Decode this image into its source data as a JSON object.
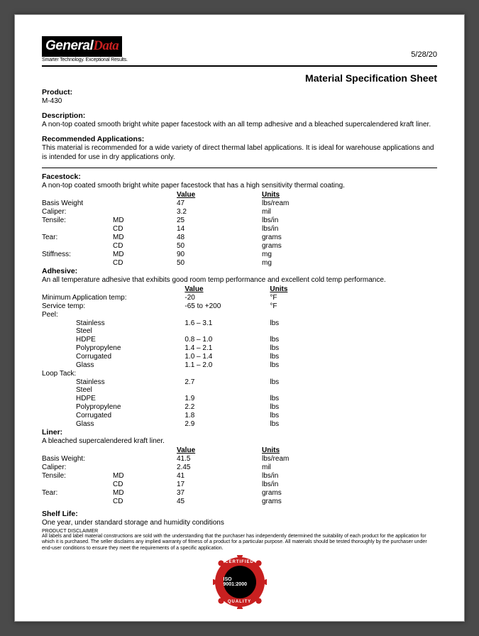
{
  "logo": {
    "part1": "General",
    "part2": "Data"
  },
  "tagline": "Smarter Technology. Exceptional Results.",
  "date": "5/28/20",
  "title": "Material Specification Sheet",
  "product": {
    "label": "Product:",
    "value": "M-430"
  },
  "description": {
    "label": "Description:",
    "value": "A non-top coated smooth bright white paper facestock with an all temp adhesive and a bleached supercalendered kraft liner."
  },
  "applications": {
    "label": "Recommended Applications:",
    "value": "This material is recommended for a wide variety of direct thermal label applications. It is ideal for warehouse applications and is intended for use in dry applications only."
  },
  "headers": {
    "value": "Value",
    "units": "Units"
  },
  "facestock": {
    "label": "Facestock:",
    "desc": "A non-top coated smooth bright white paper facestock that has a high sensitivity thermal coating.",
    "rows": [
      {
        "c1": "Basis Weight",
        "c2": "",
        "c3": "47",
        "c4": "lbs/ream"
      },
      {
        "c1": "Caliper:",
        "c2": "",
        "c3": "3.2",
        "c4": "mil"
      },
      {
        "c1": "Tensile:",
        "c2": "MD",
        "c3": "25",
        "c4": "lbs/in"
      },
      {
        "c1": "",
        "c2": "CD",
        "c3": "14",
        "c4": "lbs/in"
      },
      {
        "c1": "Tear:",
        "c2": "MD",
        "c3": "48",
        "c4": "grams"
      },
      {
        "c1": "",
        "c2": "CD",
        "c3": "50",
        "c4": "grams"
      },
      {
        "c1": "Stiffness:",
        "c2": "MD",
        "c3": "90",
        "c4": "mg"
      },
      {
        "c1": "",
        "c2": "CD",
        "c3": "50",
        "c4": "mg"
      }
    ]
  },
  "adhesive": {
    "label": "Adhesive:",
    "desc": "An all temperature adhesive that exhibits good room temp performance and excellent cold temp performance.",
    "rows": [
      {
        "c1": "Minimum Application temp:",
        "c2": "",
        "c3": "-20",
        "c4": "°F",
        "wide": true
      },
      {
        "c1": "Service temp:",
        "c2": "",
        "c3": "-65 to +200",
        "c4": "°F",
        "wide": true
      },
      {
        "c1": "Peel:",
        "c2": "",
        "c3": "",
        "c4": ""
      },
      {
        "c1": "Stainless Steel",
        "c2": "",
        "c3": "1.6 – 3.1",
        "c4": "lbs",
        "indent": true
      },
      {
        "c1": "HDPE",
        "c2": "",
        "c3": "0.8 – 1.0",
        "c4": "lbs",
        "indent": true
      },
      {
        "c1": "Polypropylene",
        "c2": "",
        "c3": "1.4 – 2.1",
        "c4": "lbs",
        "indent": true
      },
      {
        "c1": "Corrugated",
        "c2": "",
        "c3": "1.0 – 1.4",
        "c4": "lbs",
        "indent": true
      },
      {
        "c1": "Glass",
        "c2": "",
        "c3": "1.1 – 2.0",
        "c4": "lbs",
        "indent": true
      },
      {
        "c1": "Loop Tack:",
        "c2": "",
        "c3": "",
        "c4": ""
      },
      {
        "c1": "Stainless Steel",
        "c2": "",
        "c3": "2.7",
        "c4": "lbs",
        "indent": true
      },
      {
        "c1": "HDPE",
        "c2": "",
        "c3": "1.9",
        "c4": "lbs",
        "indent": true
      },
      {
        "c1": "Polypropylene",
        "c2": "",
        "c3": "2.2",
        "c4": "lbs",
        "indent": true
      },
      {
        "c1": "Corrugated",
        "c2": "",
        "c3": "1.8",
        "c4": "lbs",
        "indent": true
      },
      {
        "c1": "Glass",
        "c2": "",
        "c3": "2.9",
        "c4": "lbs",
        "indent": true
      }
    ]
  },
  "liner": {
    "label": "Liner:",
    "desc": "A bleached supercalendered kraft liner.",
    "rows": [
      {
        "c1": "Basis Weight:",
        "c2": "",
        "c3": "41.5",
        "c4": "lbs/ream"
      },
      {
        "c1": "Caliper:",
        "c2": "",
        "c3": "2.45",
        "c4": "mil"
      },
      {
        "c1": "Tensile:",
        "c2": "MD",
        "c3": "41",
        "c4": "lbs/in"
      },
      {
        "c1": "",
        "c2": "CD",
        "c3": "17",
        "c4": "lbs/in"
      },
      {
        "c1": "Tear:",
        "c2": "MD",
        "c3": "37",
        "c4": "grams"
      },
      {
        "c1": "",
        "c2": "CD",
        "c3": "45",
        "c4": "grams"
      }
    ]
  },
  "shelf": {
    "label": "Shelf Life:",
    "value": "One year, under standard storage and humidity conditions"
  },
  "disclaimer": {
    "label": "PRODUCT DISCLAIMER",
    "value": "All labels and label material constructions are sold with the understanding that the purchaser has independently determined the suitability of each product for the application for which it is purchased. The seller disclaims any implied warranty of fitness of a product for a particular purpose. All materials should be tested thoroughly by the purchaser under end-user conditions to ensure they meet the requirements of a specific application."
  },
  "seal": {
    "ring_top": "CERTIFIED",
    "center": "ISO 9001:2000",
    "ring_bottom": "QUALITY"
  },
  "colors": {
    "brand_red": "#c82020",
    "text": "#000000",
    "page_bg": "#ffffff",
    "viewer_bg": "#4a4a4a"
  }
}
